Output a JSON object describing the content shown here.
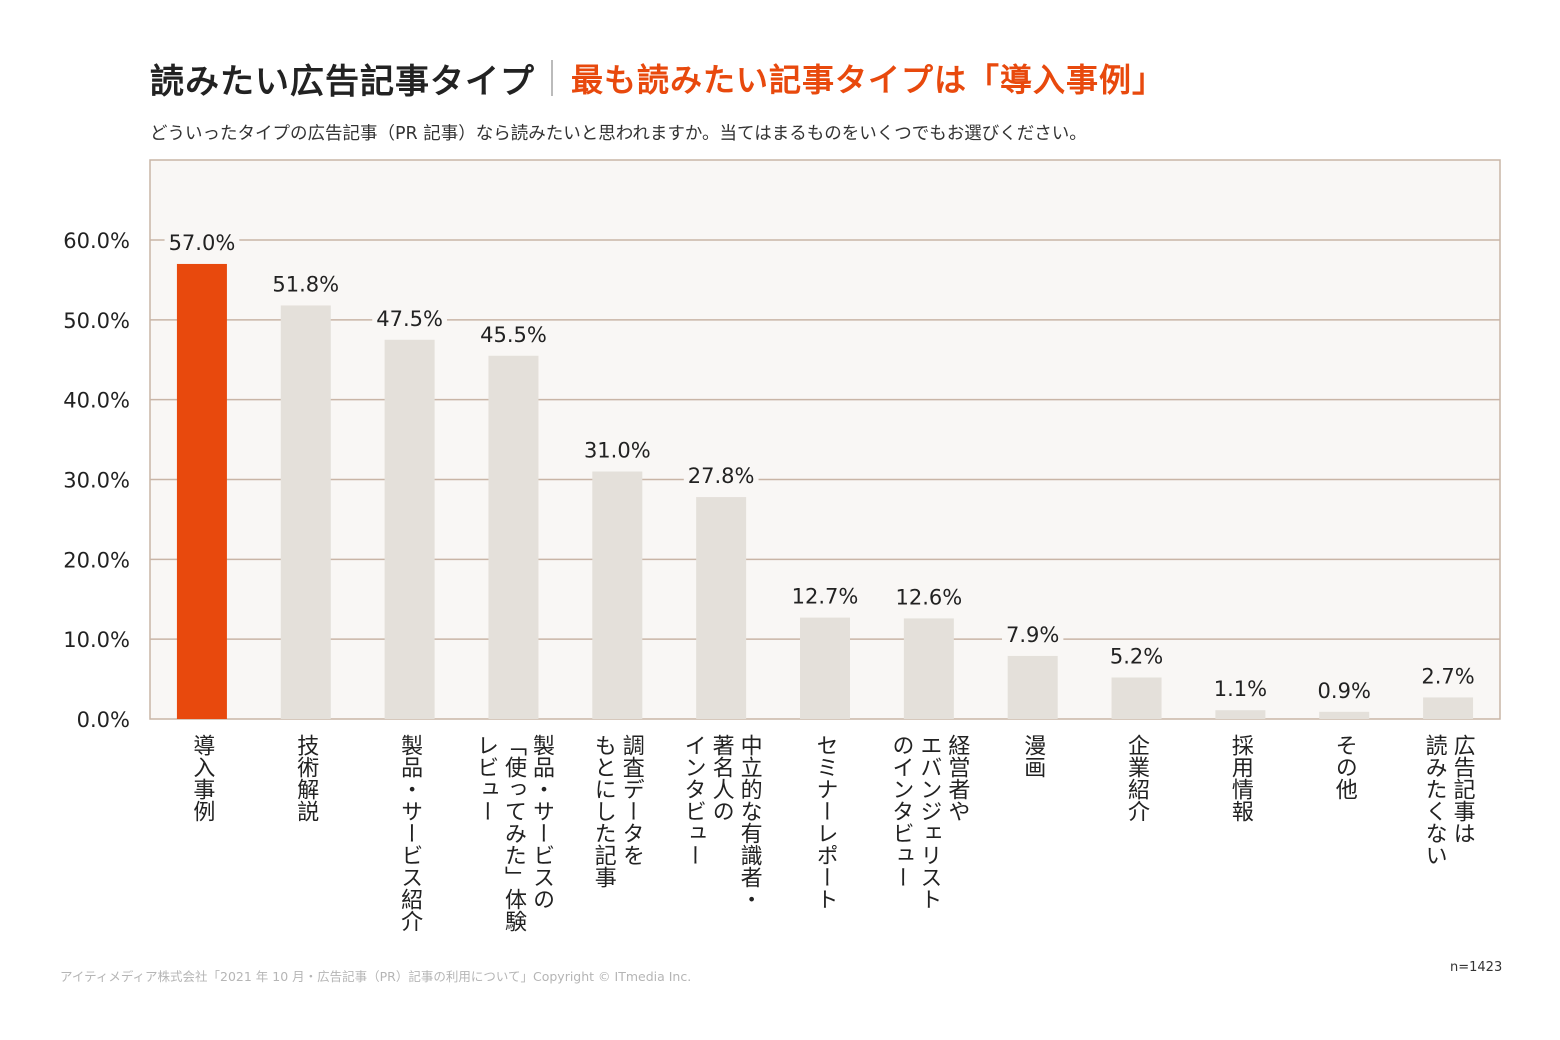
{
  "header": {
    "title": "読みたい広告記事タイプ",
    "subtitle": "最も読みたい記事タイプは「導入事例」",
    "question": "どういったタイプの広告記事（PR 記事）なら読みたいと思われますか。当てはまるものをいくつでもお選びください。"
  },
  "footer": {
    "source": "アイティメディア株式会社「2021 年 10 月・広告記事（PR）記事の利用について」Copyright © ITmedia Inc.",
    "sample": "n=1423"
  },
  "colors": {
    "highlight": "#e8490d",
    "bar": "#e4e0da",
    "plot_background": "#f9f7f5",
    "gridline": "#c9b5a6"
  },
  "chart_data": {
    "type": "bar",
    "title": "",
    "xlabel": "",
    "ylabel": "",
    "ylim": [
      0,
      70
    ],
    "yticks": [
      "0.0%",
      "10.0%",
      "20.0%",
      "30.0%",
      "40.0%",
      "50.0%",
      "60.0%"
    ],
    "grid": true,
    "highlight_index": 0,
    "categories": [
      "導入事例",
      "技術解説",
      "製品・サービス紹介",
      "製品・サービスの「使ってみた」体験レビュー",
      "調査データをもとにした記事",
      "中立的な有識者・著名人のインタビュー",
      "セミナーレポート",
      "経営者やエバンジェリストのインタビュー",
      "漫画",
      "企業紹介",
      "採用情報",
      "その他",
      "広告記事は読みたくない"
    ],
    "category_lines": [
      [
        "導入事例"
      ],
      [
        "技術解説"
      ],
      [
        "製品・サービス紹介"
      ],
      [
        "製品・サービスの",
        "「使ってみた」体験",
        "レビュー"
      ],
      [
        "調査データを",
        "もとにした記事"
      ],
      [
        "中立的な有識者・",
        "著名人の",
        "インタビュー"
      ],
      [
        "セミナーレポート"
      ],
      [
        "経営者や",
        "エバンジェリスト",
        "のインタビュー"
      ],
      [
        "漫画"
      ],
      [
        "企業紹介"
      ],
      [
        "採用情報"
      ],
      [
        "その他"
      ],
      [
        "広告記事は",
        "読みたくない"
      ]
    ],
    "values": [
      57.0,
      51.8,
      47.5,
      45.5,
      31.0,
      27.8,
      12.7,
      12.6,
      7.9,
      5.2,
      1.1,
      0.9,
      2.7
    ],
    "value_labels": [
      "57.0%",
      "51.8%",
      "47.5%",
      "45.5%",
      "31.0%",
      "27.8%",
      "12.7%",
      "12.6%",
      "7.9%",
      "5.2%",
      "1.1%",
      "0.9%",
      "2.7%"
    ]
  }
}
